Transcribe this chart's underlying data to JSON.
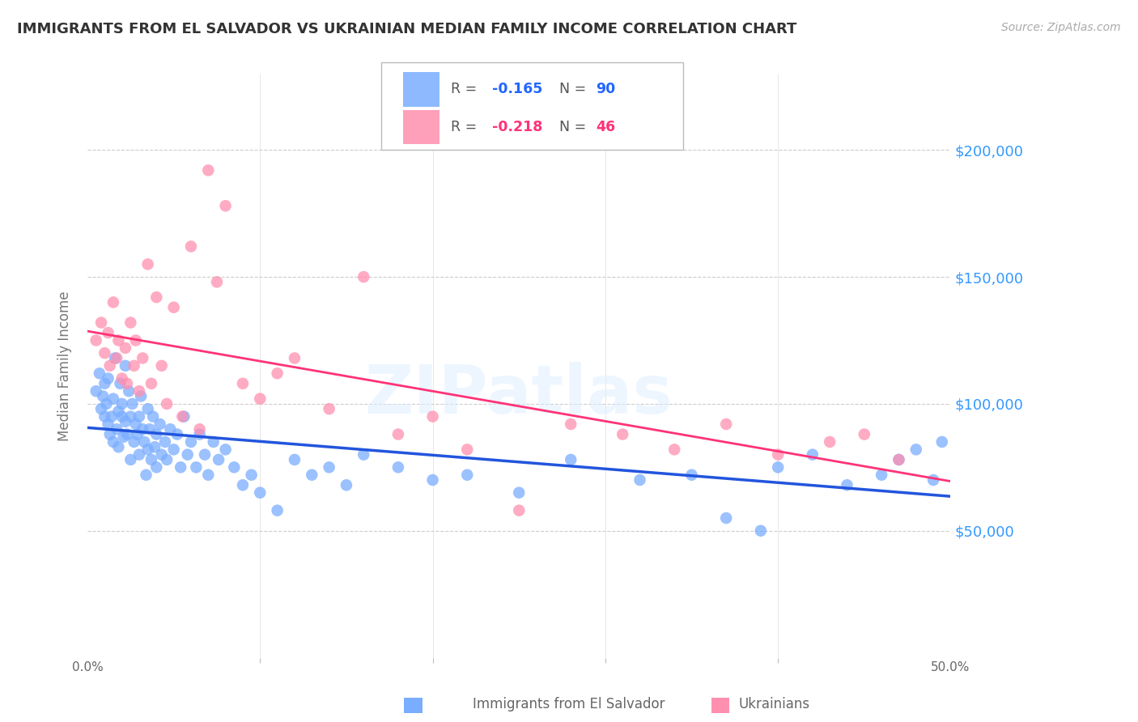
{
  "title": "IMMIGRANTS FROM EL SALVADOR VS UKRAINIAN MEDIAN FAMILY INCOME CORRELATION CHART",
  "source": "Source: ZipAtlas.com",
  "ylabel": "Median Family Income",
  "y_ticks": [
    50000,
    100000,
    150000,
    200000
  ],
  "y_tick_labels": [
    "$50,000",
    "$100,000",
    "$150,000",
    "$200,000"
  ],
  "xlim": [
    0.0,
    0.5
  ],
  "ylim": [
    0,
    230000
  ],
  "legend_blue_R": "-0.165",
  "legend_blue_N": "90",
  "legend_pink_R": "-0.218",
  "legend_pink_N": "46",
  "blue_color": "#7AADFF",
  "pink_color": "#FF8FAF",
  "blue_line_color": "#2255DD",
  "pink_line_color": "#FF3377",
  "blue_scatter_x": [
    0.005,
    0.007,
    0.008,
    0.009,
    0.01,
    0.01,
    0.011,
    0.012,
    0.012,
    0.013,
    0.014,
    0.015,
    0.015,
    0.016,
    0.017,
    0.018,
    0.018,
    0.019,
    0.02,
    0.02,
    0.021,
    0.022,
    0.022,
    0.023,
    0.024,
    0.025,
    0.025,
    0.026,
    0.027,
    0.028,
    0.029,
    0.03,
    0.03,
    0.031,
    0.032,
    0.033,
    0.034,
    0.035,
    0.035,
    0.036,
    0.037,
    0.038,
    0.039,
    0.04,
    0.04,
    0.042,
    0.043,
    0.045,
    0.046,
    0.048,
    0.05,
    0.052,
    0.054,
    0.056,
    0.058,
    0.06,
    0.063,
    0.065,
    0.068,
    0.07,
    0.073,
    0.076,
    0.08,
    0.085,
    0.09,
    0.095,
    0.1,
    0.11,
    0.12,
    0.13,
    0.14,
    0.15,
    0.16,
    0.18,
    0.2,
    0.22,
    0.25,
    0.28,
    0.32,
    0.35,
    0.37,
    0.39,
    0.4,
    0.42,
    0.44,
    0.46,
    0.47,
    0.48,
    0.49,
    0.495
  ],
  "blue_scatter_y": [
    105000,
    112000,
    98000,
    103000,
    108000,
    95000,
    100000,
    92000,
    110000,
    88000,
    95000,
    102000,
    85000,
    118000,
    90000,
    97000,
    83000,
    108000,
    95000,
    100000,
    87000,
    93000,
    115000,
    88000,
    105000,
    95000,
    78000,
    100000,
    85000,
    92000,
    88000,
    95000,
    80000,
    103000,
    90000,
    85000,
    72000,
    98000,
    82000,
    90000,
    78000,
    95000,
    83000,
    88000,
    75000,
    92000,
    80000,
    85000,
    78000,
    90000,
    82000,
    88000,
    75000,
    95000,
    80000,
    85000,
    75000,
    88000,
    80000,
    72000,
    85000,
    78000,
    82000,
    75000,
    68000,
    72000,
    65000,
    58000,
    78000,
    72000,
    75000,
    68000,
    80000,
    75000,
    70000,
    72000,
    65000,
    78000,
    70000,
    72000,
    55000,
    50000,
    75000,
    80000,
    68000,
    72000,
    78000,
    82000,
    70000,
    85000
  ],
  "pink_scatter_x": [
    0.005,
    0.008,
    0.01,
    0.012,
    0.013,
    0.015,
    0.017,
    0.018,
    0.02,
    0.022,
    0.023,
    0.025,
    0.027,
    0.028,
    0.03,
    0.032,
    0.035,
    0.037,
    0.04,
    0.043,
    0.046,
    0.05,
    0.055,
    0.06,
    0.065,
    0.07,
    0.075,
    0.08,
    0.09,
    0.1,
    0.11,
    0.12,
    0.14,
    0.16,
    0.18,
    0.2,
    0.22,
    0.25,
    0.28,
    0.31,
    0.34,
    0.37,
    0.4,
    0.43,
    0.45,
    0.47
  ],
  "pink_scatter_y": [
    125000,
    132000,
    120000,
    128000,
    115000,
    140000,
    118000,
    125000,
    110000,
    122000,
    108000,
    132000,
    115000,
    125000,
    105000,
    118000,
    155000,
    108000,
    142000,
    115000,
    100000,
    138000,
    95000,
    162000,
    90000,
    192000,
    148000,
    178000,
    108000,
    102000,
    112000,
    118000,
    98000,
    150000,
    88000,
    95000,
    82000,
    58000,
    92000,
    88000,
    82000,
    92000,
    80000,
    85000,
    88000,
    78000
  ]
}
